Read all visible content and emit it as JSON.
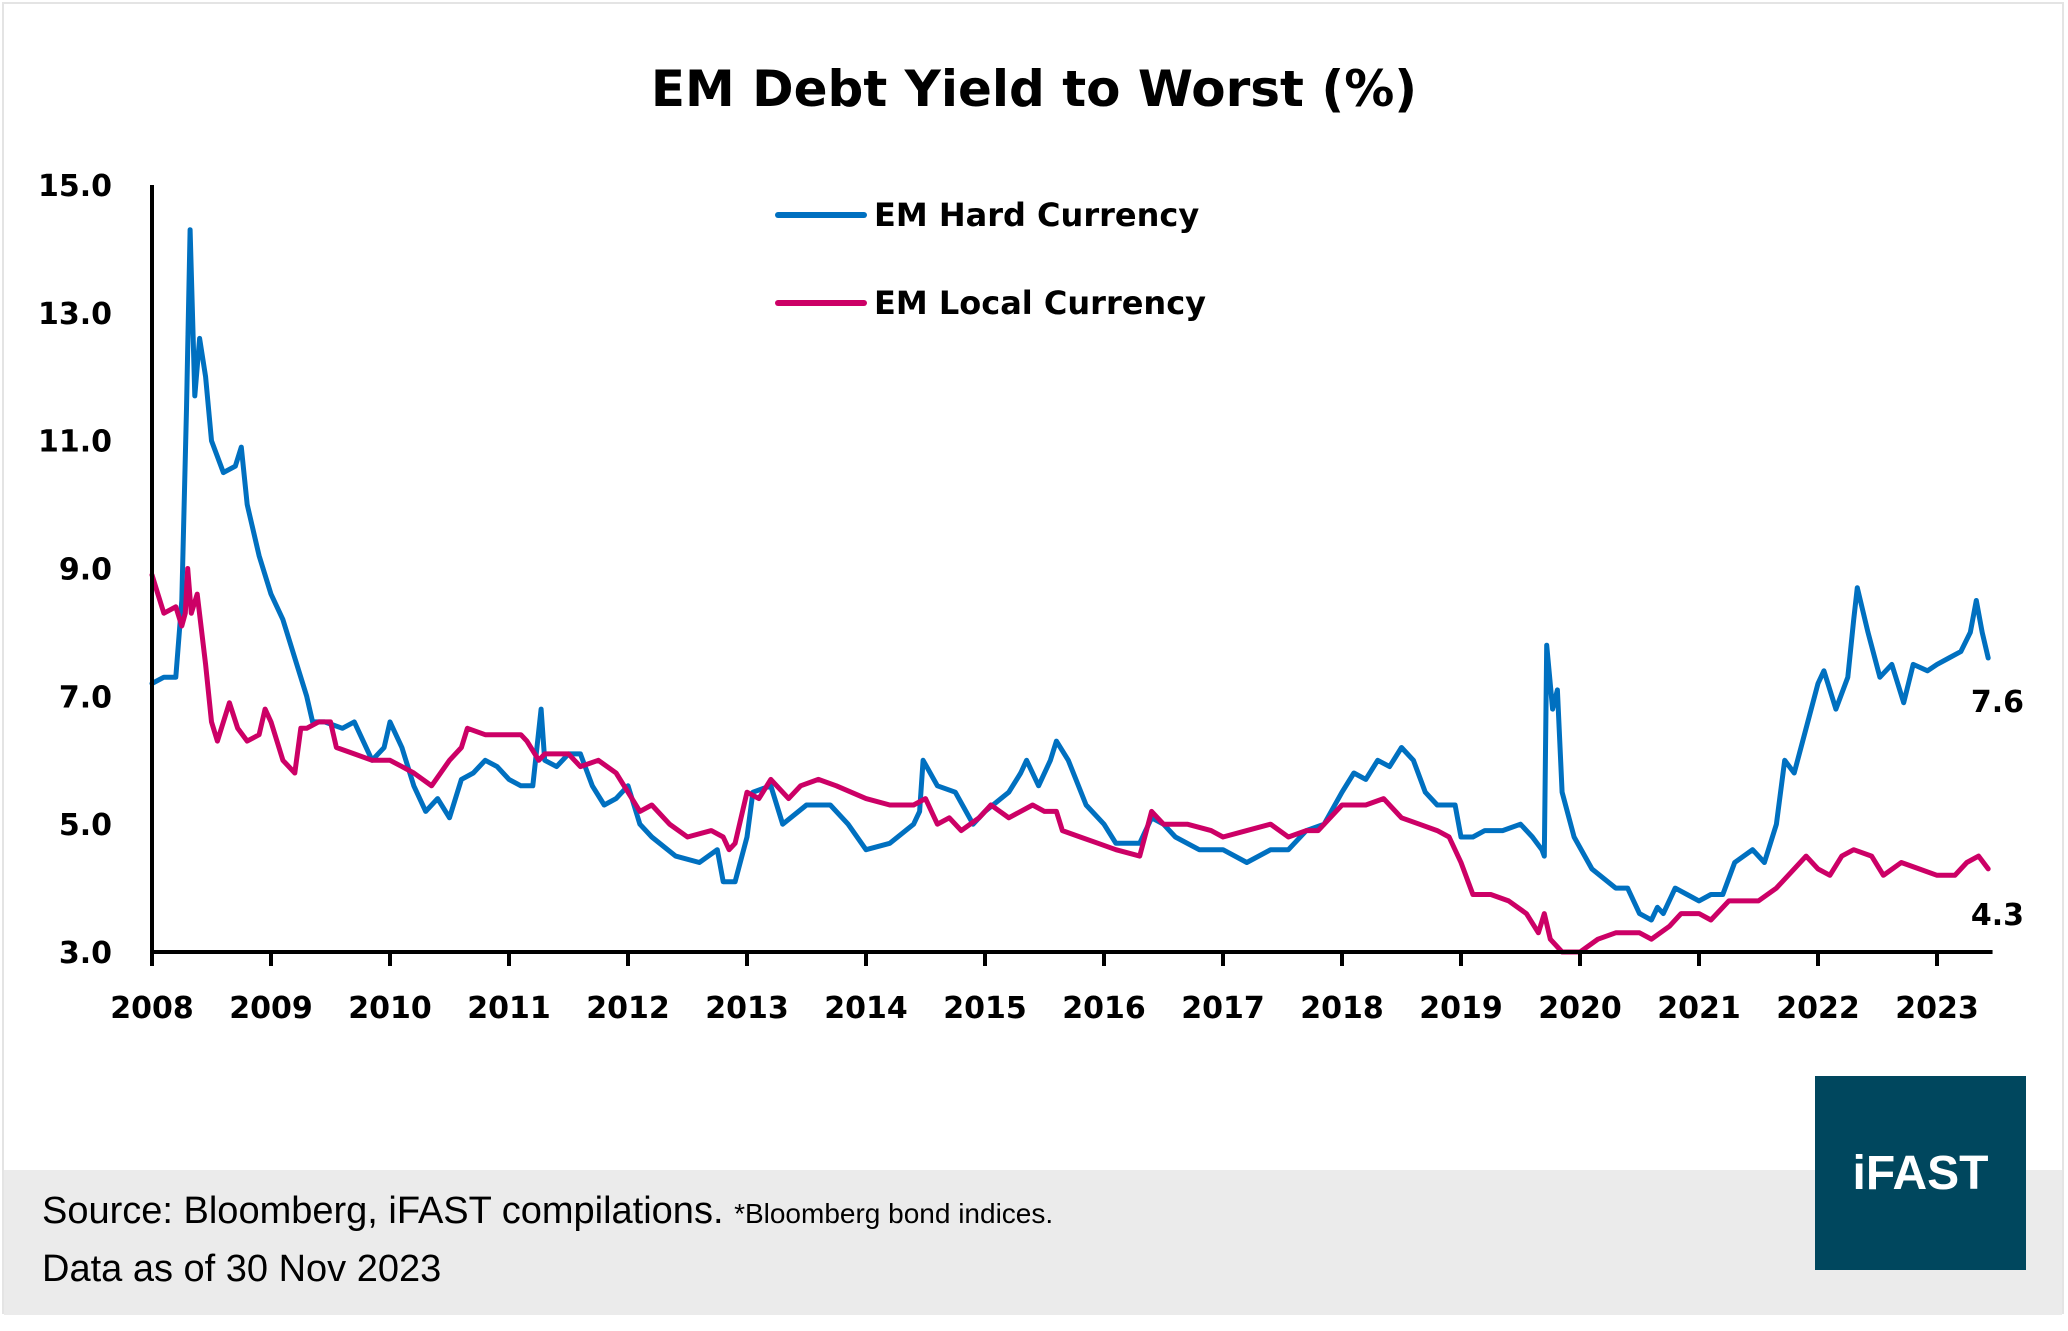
{
  "chart_data": {
    "type": "line",
    "title": "EM Debt Yield to Worst (%)",
    "xlabel": "",
    "ylabel": "",
    "xlim": [
      2008,
      2023.45
    ],
    "ylim": [
      3.0,
      15.0
    ],
    "x_ticks": [
      "2008",
      "2009",
      "2010",
      "2011",
      "2012",
      "2013",
      "2014",
      "2015",
      "2016",
      "2017",
      "2018",
      "2019",
      "2020",
      "2021",
      "2022",
      "2023"
    ],
    "y_ticks": [
      "3.0",
      "5.0",
      "7.0",
      "9.0",
      "11.0",
      "13.0",
      "15.0"
    ],
    "grid": false,
    "legend_placement": "top-center",
    "series": [
      {
        "name": "EM Hard Currency",
        "color": "#0070C0",
        "end_label": "7.6",
        "points": [
          [
            2008.0,
            7.2
          ],
          [
            2008.1,
            7.3
          ],
          [
            2008.2,
            7.3
          ],
          [
            2008.25,
            8.5
          ],
          [
            2008.29,
            11.5
          ],
          [
            2008.32,
            14.3
          ],
          [
            2008.36,
            11.7
          ],
          [
            2008.4,
            12.6
          ],
          [
            2008.45,
            12.0
          ],
          [
            2008.5,
            11.0
          ],
          [
            2008.6,
            10.5
          ],
          [
            2008.7,
            10.6
          ],
          [
            2008.75,
            10.9
          ],
          [
            2008.8,
            10.0
          ],
          [
            2008.9,
            9.2
          ],
          [
            2009.0,
            8.6
          ],
          [
            2009.1,
            8.2
          ],
          [
            2009.2,
            7.6
          ],
          [
            2009.3,
            7.0
          ],
          [
            2009.35,
            6.6
          ],
          [
            2009.45,
            6.6
          ],
          [
            2009.6,
            6.5
          ],
          [
            2009.7,
            6.6
          ],
          [
            2009.85,
            6.0
          ],
          [
            2009.95,
            6.2
          ],
          [
            2010.0,
            6.6
          ],
          [
            2010.1,
            6.2
          ],
          [
            2010.2,
            5.6
          ],
          [
            2010.3,
            5.2
          ],
          [
            2010.4,
            5.4
          ],
          [
            2010.5,
            5.1
          ],
          [
            2010.6,
            5.7
          ],
          [
            2010.7,
            5.8
          ],
          [
            2010.8,
            6.0
          ],
          [
            2010.9,
            5.9
          ],
          [
            2011.0,
            5.7
          ],
          [
            2011.1,
            5.6
          ],
          [
            2011.2,
            5.6
          ],
          [
            2011.27,
            6.8
          ],
          [
            2011.3,
            6.0
          ],
          [
            2011.4,
            5.9
          ],
          [
            2011.5,
            6.1
          ],
          [
            2011.6,
            6.1
          ],
          [
            2011.7,
            5.6
          ],
          [
            2011.8,
            5.3
          ],
          [
            2011.9,
            5.4
          ],
          [
            2012.0,
            5.6
          ],
          [
            2012.1,
            5.0
          ],
          [
            2012.2,
            4.8
          ],
          [
            2012.4,
            4.5
          ],
          [
            2012.6,
            4.4
          ],
          [
            2012.75,
            4.6
          ],
          [
            2012.8,
            4.1
          ],
          [
            2012.9,
            4.1
          ],
          [
            2013.0,
            4.8
          ],
          [
            2013.05,
            5.5
          ],
          [
            2013.2,
            5.6
          ],
          [
            2013.3,
            5.0
          ],
          [
            2013.5,
            5.3
          ],
          [
            2013.7,
            5.3
          ],
          [
            2013.85,
            5.0
          ],
          [
            2014.0,
            4.6
          ],
          [
            2014.2,
            4.7
          ],
          [
            2014.4,
            5.0
          ],
          [
            2014.45,
            5.2
          ],
          [
            2014.48,
            6.0
          ],
          [
            2014.6,
            5.6
          ],
          [
            2014.75,
            5.5
          ],
          [
            2014.9,
            5.0
          ],
          [
            2015.0,
            5.2
          ],
          [
            2015.2,
            5.5
          ],
          [
            2015.3,
            5.8
          ],
          [
            2015.35,
            6.0
          ],
          [
            2015.45,
            5.6
          ],
          [
            2015.55,
            6.0
          ],
          [
            2015.6,
            6.3
          ],
          [
            2015.7,
            6.0
          ],
          [
            2015.85,
            5.3
          ],
          [
            2016.0,
            5.0
          ],
          [
            2016.1,
            4.7
          ],
          [
            2016.3,
            4.7
          ],
          [
            2016.4,
            5.1
          ],
          [
            2016.5,
            5.0
          ],
          [
            2016.6,
            4.8
          ],
          [
            2016.8,
            4.6
          ],
          [
            2017.0,
            4.6
          ],
          [
            2017.2,
            4.4
          ],
          [
            2017.4,
            4.6
          ],
          [
            2017.55,
            4.6
          ],
          [
            2017.7,
            4.9
          ],
          [
            2017.85,
            5.0
          ],
          [
            2018.0,
            5.5
          ],
          [
            2018.1,
            5.8
          ],
          [
            2018.2,
            5.7
          ],
          [
            2018.3,
            6.0
          ],
          [
            2018.4,
            5.9
          ],
          [
            2018.5,
            6.2
          ],
          [
            2018.6,
            6.0
          ],
          [
            2018.7,
            5.5
          ],
          [
            2018.8,
            5.3
          ],
          [
            2018.95,
            5.3
          ],
          [
            2019.0,
            4.8
          ],
          [
            2019.1,
            4.8
          ],
          [
            2019.2,
            4.9
          ],
          [
            2019.35,
            4.9
          ],
          [
            2019.5,
            5.0
          ],
          [
            2019.6,
            4.8
          ],
          [
            2019.68,
            4.6
          ],
          [
            2019.7,
            4.5
          ],
          [
            2019.72,
            7.8
          ],
          [
            2019.77,
            6.8
          ],
          [
            2019.81,
            7.1
          ],
          [
            2019.85,
            5.5
          ],
          [
            2019.95,
            4.8
          ],
          [
            2020.1,
            4.3
          ],
          [
            2020.3,
            4.0
          ],
          [
            2020.4,
            4.0
          ],
          [
            2020.5,
            3.6
          ],
          [
            2020.6,
            3.5
          ],
          [
            2020.65,
            3.7
          ],
          [
            2020.7,
            3.6
          ],
          [
            2020.8,
            4.0
          ],
          [
            2020.9,
            3.9
          ],
          [
            2021.0,
            3.8
          ],
          [
            2021.1,
            3.9
          ],
          [
            2021.2,
            3.9
          ],
          [
            2021.3,
            4.4
          ],
          [
            2021.45,
            4.6
          ],
          [
            2021.55,
            4.4
          ],
          [
            2021.65,
            5.0
          ],
          [
            2021.72,
            6.0
          ],
          [
            2021.8,
            5.8
          ],
          [
            2021.9,
            6.5
          ],
          [
            2022.0,
            7.2
          ],
          [
            2022.05,
            7.4
          ],
          [
            2022.15,
            6.8
          ],
          [
            2022.25,
            7.3
          ],
          [
            2022.3,
            8.2
          ],
          [
            2022.33,
            8.7
          ],
          [
            2022.42,
            8.0
          ],
          [
            2022.52,
            7.3
          ],
          [
            2022.62,
            7.5
          ],
          [
            2022.72,
            6.9
          ],
          [
            2022.8,
            7.5
          ],
          [
            2022.92,
            7.4
          ],
          [
            2023.0,
            7.5
          ],
          [
            2023.1,
            7.6
          ],
          [
            2023.2,
            7.7
          ],
          [
            2023.28,
            8.0
          ],
          [
            2023.33,
            8.5
          ],
          [
            2023.38,
            8.0
          ],
          [
            2023.43,
            7.6
          ]
        ]
      },
      {
        "name": "EM Local Currency",
        "color": "#CC0066",
        "end_label": "4.3",
        "points": [
          [
            2008.0,
            8.9
          ],
          [
            2008.05,
            8.6
          ],
          [
            2008.1,
            8.3
          ],
          [
            2008.2,
            8.4
          ],
          [
            2008.25,
            8.1
          ],
          [
            2008.28,
            8.3
          ],
          [
            2008.3,
            9.0
          ],
          [
            2008.33,
            8.3
          ],
          [
            2008.38,
            8.6
          ],
          [
            2008.45,
            7.5
          ],
          [
            2008.5,
            6.6
          ],
          [
            2008.55,
            6.3
          ],
          [
            2008.6,
            6.6
          ],
          [
            2008.65,
            6.9
          ],
          [
            2008.72,
            6.5
          ],
          [
            2008.8,
            6.3
          ],
          [
            2008.9,
            6.4
          ],
          [
            2008.95,
            6.8
          ],
          [
            2009.0,
            6.6
          ],
          [
            2009.1,
            6.0
          ],
          [
            2009.2,
            5.8
          ],
          [
            2009.25,
            6.5
          ],
          [
            2009.3,
            6.5
          ],
          [
            2009.4,
            6.6
          ],
          [
            2009.5,
            6.6
          ],
          [
            2009.55,
            6.2
          ],
          [
            2009.7,
            6.1
          ],
          [
            2009.85,
            6.0
          ],
          [
            2010.0,
            6.0
          ],
          [
            2010.1,
            5.9
          ],
          [
            2010.2,
            5.8
          ],
          [
            2010.35,
            5.6
          ],
          [
            2010.5,
            6.0
          ],
          [
            2010.6,
            6.2
          ],
          [
            2010.65,
            6.5
          ],
          [
            2010.8,
            6.4
          ],
          [
            2011.0,
            6.4
          ],
          [
            2011.1,
            6.4
          ],
          [
            2011.15,
            6.3
          ],
          [
            2011.25,
            6.0
          ],
          [
            2011.3,
            6.1
          ],
          [
            2011.4,
            6.1
          ],
          [
            2011.5,
            6.1
          ],
          [
            2011.6,
            5.9
          ],
          [
            2011.75,
            6.0
          ],
          [
            2011.9,
            5.8
          ],
          [
            2012.0,
            5.5
          ],
          [
            2012.1,
            5.2
          ],
          [
            2012.2,
            5.3
          ],
          [
            2012.35,
            5.0
          ],
          [
            2012.5,
            4.8
          ],
          [
            2012.7,
            4.9
          ],
          [
            2012.8,
            4.8
          ],
          [
            2012.85,
            4.6
          ],
          [
            2012.9,
            4.7
          ],
          [
            2013.0,
            5.5
          ],
          [
            2013.1,
            5.4
          ],
          [
            2013.2,
            5.7
          ],
          [
            2013.35,
            5.4
          ],
          [
            2013.45,
            5.6
          ],
          [
            2013.6,
            5.7
          ],
          [
            2013.75,
            5.6
          ],
          [
            2014.0,
            5.4
          ],
          [
            2014.2,
            5.3
          ],
          [
            2014.4,
            5.3
          ],
          [
            2014.5,
            5.4
          ],
          [
            2014.6,
            5.0
          ],
          [
            2014.7,
            5.1
          ],
          [
            2014.8,
            4.9
          ],
          [
            2014.95,
            5.1
          ],
          [
            2015.05,
            5.3
          ],
          [
            2015.2,
            5.1
          ],
          [
            2015.4,
            5.3
          ],
          [
            2015.5,
            5.2
          ],
          [
            2015.6,
            5.2
          ],
          [
            2015.65,
            4.9
          ],
          [
            2015.8,
            4.8
          ],
          [
            2015.95,
            4.7
          ],
          [
            2016.1,
            4.6
          ],
          [
            2016.3,
            4.5
          ],
          [
            2016.4,
            5.2
          ],
          [
            2016.5,
            5.0
          ],
          [
            2016.7,
            5.0
          ],
          [
            2016.9,
            4.9
          ],
          [
            2017.0,
            4.8
          ],
          [
            2017.2,
            4.9
          ],
          [
            2017.4,
            5.0
          ],
          [
            2017.55,
            4.8
          ],
          [
            2017.7,
            4.9
          ],
          [
            2017.8,
            4.9
          ],
          [
            2018.0,
            5.3
          ],
          [
            2018.2,
            5.3
          ],
          [
            2018.35,
            5.4
          ],
          [
            2018.5,
            5.1
          ],
          [
            2018.65,
            5.0
          ],
          [
            2018.8,
            4.9
          ],
          [
            2018.9,
            4.8
          ],
          [
            2019.0,
            4.4
          ],
          [
            2019.1,
            3.9
          ],
          [
            2019.25,
            3.9
          ],
          [
            2019.4,
            3.8
          ],
          [
            2019.55,
            3.6
          ],
          [
            2019.65,
            3.3
          ],
          [
            2019.7,
            3.6
          ],
          [
            2019.75,
            3.2
          ],
          [
            2019.85,
            3.0
          ],
          [
            2020.0,
            3.0
          ],
          [
            2020.15,
            3.2
          ],
          [
            2020.3,
            3.3
          ],
          [
            2020.5,
            3.3
          ],
          [
            2020.6,
            3.2
          ],
          [
            2020.75,
            3.4
          ],
          [
            2020.85,
            3.6
          ],
          [
            2021.0,
            3.6
          ],
          [
            2021.1,
            3.5
          ],
          [
            2021.25,
            3.8
          ],
          [
            2021.35,
            3.8
          ],
          [
            2021.5,
            3.8
          ],
          [
            2021.65,
            4.0
          ],
          [
            2021.8,
            4.3
          ],
          [
            2021.9,
            4.5
          ],
          [
            2022.0,
            4.3
          ],
          [
            2022.1,
            4.2
          ],
          [
            2022.2,
            4.5
          ],
          [
            2022.3,
            4.6
          ],
          [
            2022.45,
            4.5
          ],
          [
            2022.55,
            4.2
          ],
          [
            2022.7,
            4.4
          ],
          [
            2022.85,
            4.3
          ],
          [
            2023.0,
            4.2
          ],
          [
            2023.15,
            4.2
          ],
          [
            2023.25,
            4.4
          ],
          [
            2023.35,
            4.5
          ],
          [
            2023.43,
            4.3
          ]
        ]
      }
    ]
  },
  "footer": {
    "source": "Source: Bloomberg, iFAST compilations.",
    "note": "*Bloomberg bond indices.",
    "as_of": "Data as of 30 Nov 2023"
  },
  "logo": {
    "text": "iFAST",
    "color": "#00475E"
  }
}
